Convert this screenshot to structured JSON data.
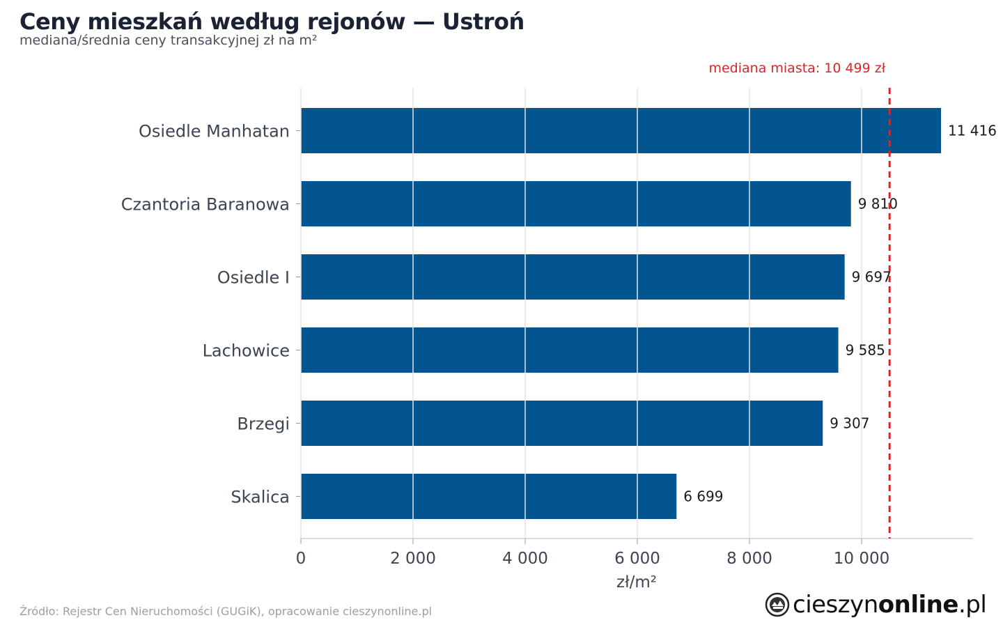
{
  "header": {
    "title": "Ceny mieszkań według rejonów — Ustroń",
    "subtitle": "mediana/średnia ceny transakcyjnej zł na m²"
  },
  "chart_data": {
    "type": "bar",
    "orientation": "horizontal",
    "categories": [
      "Osiedle Manhatan",
      "Czantoria Baranowa",
      "Osiedle I",
      "Lachowice",
      "Brzegi",
      "Skalica"
    ],
    "values": [
      11416,
      9810,
      9697,
      9585,
      9307,
      6699
    ],
    "value_labels": [
      "11 416",
      "9 810",
      "9 697",
      "9 585",
      "9 307",
      "6 699"
    ],
    "xlabel": "zł/m²",
    "xlim": [
      0,
      12000
    ],
    "xticks": [
      0,
      2000,
      4000,
      6000,
      8000,
      10000
    ],
    "xtick_labels": [
      "0",
      "2 000",
      "4 000",
      "6 000",
      "8 000",
      "10 000"
    ],
    "grid": true,
    "reference_line": {
      "value": 10499,
      "label": "mediana miasta: 10 499 zł",
      "color": "#d62728",
      "style": "dashed"
    },
    "bar_color": "#02558f"
  },
  "footer": {
    "source": "Źródło: Rejestr Cen Nieruchomości (GUGiK), opracowanie cieszynonline.pl",
    "logo_text_regular": "cieszyn",
    "logo_text_bold": "online",
    "logo_text_suffix": ".pl"
  }
}
